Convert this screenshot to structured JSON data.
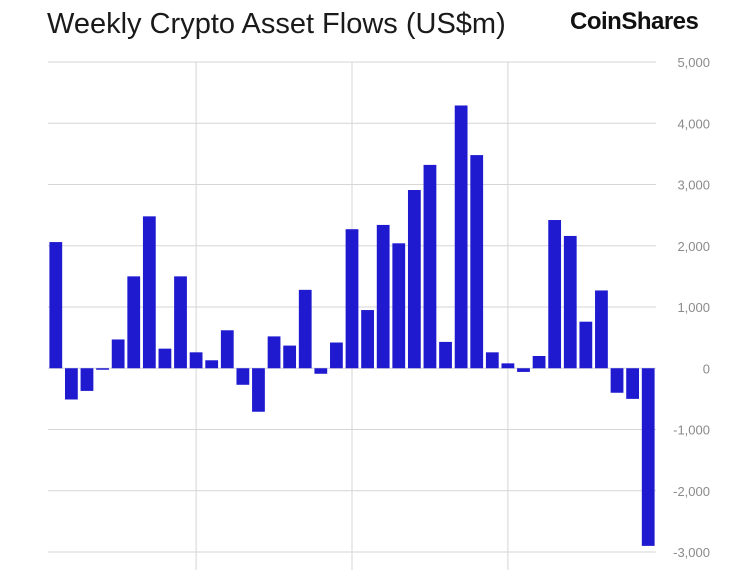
{
  "colors": {
    "bar": "#1F19D0",
    "grid": "#d6d6d6",
    "tick_text": "#8a8a8a",
    "title": "#1a1a1a"
  },
  "brand": {
    "name": "CoinShares"
  },
  "chart_data": {
    "type": "bar",
    "title": "Weekly Crypto Asset Flows (US$m)",
    "xlabel": "",
    "ylabel": "",
    "ylim": [
      -3000,
      5000
    ],
    "y_ticks": [
      5000,
      4000,
      3000,
      2000,
      1000,
      0,
      -1000,
      -2000,
      -3000
    ],
    "y_tick_labels": [
      "5,000",
      "4,000",
      "3,000",
      "2,000",
      "1,000",
      "0",
      "-1,000",
      "-2,000",
      "-3,000"
    ],
    "y_axis_position": "right",
    "grid": true,
    "x_gridline_after_bar_index": [
      9,
      19,
      29
    ],
    "values": [
      2060,
      -510,
      -370,
      -20,
      470,
      1500,
      2480,
      320,
      1500,
      260,
      130,
      620,
      -270,
      -710,
      520,
      370,
      1280,
      -90,
      420,
      2270,
      950,
      2340,
      2040,
      2910,
      3320,
      430,
      4290,
      3480,
      260,
      80,
      -60,
      200,
      2420,
      2160,
      760,
      1270,
      -400,
      -500,
      -2900
    ]
  }
}
